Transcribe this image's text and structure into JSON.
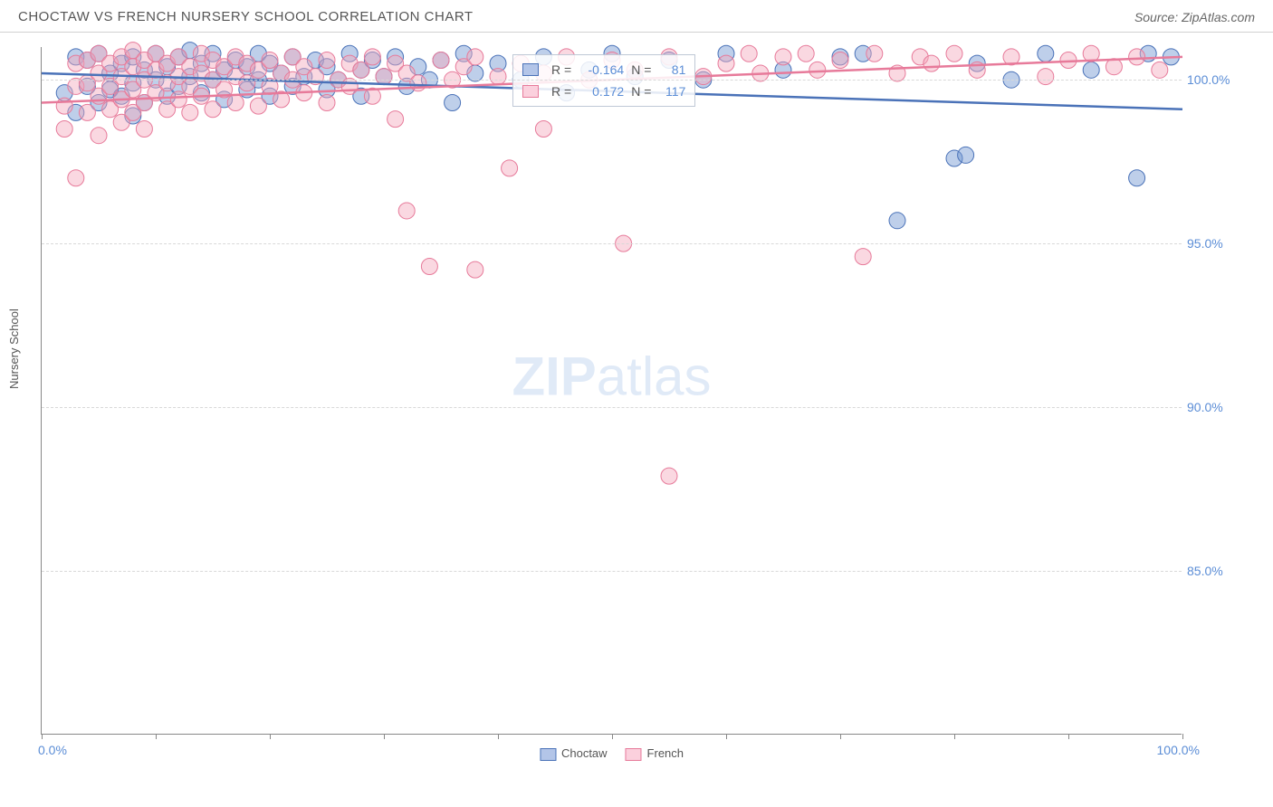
{
  "header": {
    "title": "CHOCTAW VS FRENCH NURSERY SCHOOL CORRELATION CHART",
    "source_prefix": "Source: ",
    "source_name": "ZipAtlas.com"
  },
  "chart": {
    "type": "scatter",
    "ylabel": "Nursery School",
    "xlim": [
      0,
      100
    ],
    "ylim": [
      80,
      101
    ],
    "ytick_labels": [
      "85.0%",
      "90.0%",
      "95.0%",
      "100.0%"
    ],
    "ytick_values": [
      85,
      90,
      95,
      100
    ],
    "xtick_labels_left": "0.0%",
    "xtick_labels_right": "100.0%",
    "xtick_positions": [
      0,
      10,
      20,
      30,
      40,
      50,
      60,
      70,
      80,
      90,
      100
    ],
    "grid_color": "#d8d8d8",
    "background_color": "#ffffff",
    "marker_radius": 9,
    "marker_opacity": 0.45,
    "line_width": 2.5,
    "watermark": "ZIPatlas",
    "series": [
      {
        "name": "Choctaw",
        "color_fill": "#6f94d1",
        "color_stroke": "#4a72b8",
        "r_label": "R =",
        "r_value": "-0.164",
        "n_label": "N =",
        "n_value": "81",
        "trend": {
          "x1": 0,
          "y1": 100.2,
          "x2": 100,
          "y2": 99.1
        },
        "points": [
          [
            2,
            99.6
          ],
          [
            3,
            99.0
          ],
          [
            3,
            100.7
          ],
          [
            4,
            99.8
          ],
          [
            4,
            100.6
          ],
          [
            5,
            99.3
          ],
          [
            5,
            100.8
          ],
          [
            6,
            99.7
          ],
          [
            6,
            100.2
          ],
          [
            7,
            99.5
          ],
          [
            7,
            100.5
          ],
          [
            8,
            98.9
          ],
          [
            8,
            99.9
          ],
          [
            8,
            100.7
          ],
          [
            9,
            99.3
          ],
          [
            9,
            100.3
          ],
          [
            10,
            100.0
          ],
          [
            10,
            100.8
          ],
          [
            11,
            99.5
          ],
          [
            11,
            100.4
          ],
          [
            12,
            99.8
          ],
          [
            12,
            100.7
          ],
          [
            13,
            100.1
          ],
          [
            13,
            100.9
          ],
          [
            14,
            99.6
          ],
          [
            14,
            100.5
          ],
          [
            15,
            100.0
          ],
          [
            15,
            100.8
          ],
          [
            16,
            99.4
          ],
          [
            16,
            100.3
          ],
          [
            17,
            100.6
          ],
          [
            18,
            99.7
          ],
          [
            18,
            100.4
          ],
          [
            19,
            100.0
          ],
          [
            19,
            100.8
          ],
          [
            20,
            99.5
          ],
          [
            20,
            100.5
          ],
          [
            21,
            100.2
          ],
          [
            22,
            99.8
          ],
          [
            22,
            100.7
          ],
          [
            23,
            100.1
          ],
          [
            24,
            100.6
          ],
          [
            25,
            99.7
          ],
          [
            25,
            100.4
          ],
          [
            26,
            100.0
          ],
          [
            27,
            100.8
          ],
          [
            28,
            99.5
          ],
          [
            28,
            100.3
          ],
          [
            29,
            100.6
          ],
          [
            30,
            100.1
          ],
          [
            31,
            100.7
          ],
          [
            32,
            99.8
          ],
          [
            33,
            100.4
          ],
          [
            34,
            100.0
          ],
          [
            35,
            100.6
          ],
          [
            36,
            99.3
          ],
          [
            37,
            100.8
          ],
          [
            38,
            100.2
          ],
          [
            40,
            100.5
          ],
          [
            42,
            100.0
          ],
          [
            44,
            100.7
          ],
          [
            46,
            99.6
          ],
          [
            48,
            100.3
          ],
          [
            50,
            100.8
          ],
          [
            52,
            100.1
          ],
          [
            55,
            100.6
          ],
          [
            58,
            100.0
          ],
          [
            60,
            100.8
          ],
          [
            65,
            100.3
          ],
          [
            70,
            100.7
          ],
          [
            72,
            100.8
          ],
          [
            75,
            95.7
          ],
          [
            80,
            97.6
          ],
          [
            81,
            97.7
          ],
          [
            82,
            100.5
          ],
          [
            85,
            100.0
          ],
          [
            88,
            100.8
          ],
          [
            92,
            100.3
          ],
          [
            96,
            97.0
          ],
          [
            97,
            100.8
          ],
          [
            99,
            100.7
          ]
        ]
      },
      {
        "name": "French",
        "color_fill": "#f4a8bc",
        "color_stroke": "#e77a9a",
        "r_label": "R =",
        "r_value": "0.172",
        "n_label": "N =",
        "n_value": "117",
        "trend": {
          "x1": 0,
          "y1": 99.3,
          "x2": 100,
          "y2": 100.7
        },
        "points": [
          [
            2,
            98.5
          ],
          [
            2,
            99.2
          ],
          [
            3,
            97.0
          ],
          [
            3,
            99.8
          ],
          [
            3,
            100.5
          ],
          [
            4,
            99.0
          ],
          [
            4,
            99.9
          ],
          [
            4,
            100.6
          ],
          [
            5,
            98.3
          ],
          [
            5,
            99.5
          ],
          [
            5,
            100.2
          ],
          [
            5,
            100.8
          ],
          [
            6,
            99.1
          ],
          [
            6,
            99.8
          ],
          [
            6,
            100.5
          ],
          [
            7,
            98.7
          ],
          [
            7,
            99.4
          ],
          [
            7,
            100.1
          ],
          [
            7,
            100.7
          ],
          [
            8,
            99.0
          ],
          [
            8,
            99.7
          ],
          [
            8,
            100.4
          ],
          [
            8,
            100.9
          ],
          [
            9,
            98.5
          ],
          [
            9,
            99.3
          ],
          [
            9,
            100.0
          ],
          [
            9,
            100.6
          ],
          [
            10,
            99.6
          ],
          [
            10,
            100.3
          ],
          [
            10,
            100.8
          ],
          [
            11,
            99.1
          ],
          [
            11,
            99.9
          ],
          [
            11,
            100.5
          ],
          [
            12,
            99.4
          ],
          [
            12,
            100.1
          ],
          [
            12,
            100.7
          ],
          [
            13,
            99.0
          ],
          [
            13,
            99.8
          ],
          [
            13,
            100.4
          ],
          [
            14,
            99.5
          ],
          [
            14,
            100.2
          ],
          [
            14,
            100.8
          ],
          [
            15,
            99.1
          ],
          [
            15,
            100.0
          ],
          [
            15,
            100.6
          ],
          [
            16,
            99.7
          ],
          [
            16,
            100.4
          ],
          [
            17,
            99.3
          ],
          [
            17,
            100.1
          ],
          [
            17,
            100.7
          ],
          [
            18,
            99.9
          ],
          [
            18,
            100.5
          ],
          [
            19,
            99.2
          ],
          [
            19,
            100.3
          ],
          [
            20,
            99.8
          ],
          [
            20,
            100.6
          ],
          [
            21,
            99.4
          ],
          [
            21,
            100.2
          ],
          [
            22,
            100.0
          ],
          [
            22,
            100.7
          ],
          [
            23,
            99.6
          ],
          [
            23,
            100.4
          ],
          [
            24,
            100.1
          ],
          [
            25,
            99.3
          ],
          [
            25,
            100.6
          ],
          [
            26,
            100.0
          ],
          [
            27,
            99.8
          ],
          [
            27,
            100.5
          ],
          [
            28,
            100.3
          ],
          [
            29,
            99.5
          ],
          [
            29,
            100.7
          ],
          [
            30,
            100.1
          ],
          [
            31,
            98.8
          ],
          [
            31,
            100.5
          ],
          [
            32,
            96.0
          ],
          [
            32,
            100.2
          ],
          [
            33,
            99.9
          ],
          [
            34,
            94.3
          ],
          [
            35,
            100.6
          ],
          [
            36,
            100.0
          ],
          [
            37,
            100.4
          ],
          [
            38,
            94.2
          ],
          [
            38,
            100.7
          ],
          [
            40,
            100.1
          ],
          [
            41,
            97.3
          ],
          [
            42,
            100.5
          ],
          [
            44,
            98.5
          ],
          [
            44,
            100.2
          ],
          [
            46,
            100.7
          ],
          [
            48,
            100.0
          ],
          [
            50,
            100.6
          ],
          [
            51,
            95.0
          ],
          [
            52,
            100.3
          ],
          [
            55,
            87.9
          ],
          [
            55,
            100.7
          ],
          [
            58,
            100.1
          ],
          [
            60,
            100.5
          ],
          [
            62,
            100.8
          ],
          [
            63,
            100.2
          ],
          [
            65,
            100.7
          ],
          [
            67,
            100.8
          ],
          [
            68,
            100.3
          ],
          [
            70,
            100.6
          ],
          [
            72,
            94.6
          ],
          [
            73,
            100.8
          ],
          [
            75,
            100.2
          ],
          [
            77,
            100.7
          ],
          [
            78,
            100.5
          ],
          [
            80,
            100.8
          ],
          [
            82,
            100.3
          ],
          [
            85,
            100.7
          ],
          [
            88,
            100.1
          ],
          [
            90,
            100.6
          ],
          [
            92,
            100.8
          ],
          [
            94,
            100.4
          ],
          [
            96,
            100.7
          ],
          [
            98,
            100.3
          ]
        ]
      }
    ]
  },
  "legend_bottom": {
    "items": [
      {
        "label": "Choctaw",
        "fill": "#b3c5e8",
        "stroke": "#4a72b8"
      },
      {
        "label": "French",
        "fill": "#fbd0dd",
        "stroke": "#e77a9a"
      }
    ]
  }
}
